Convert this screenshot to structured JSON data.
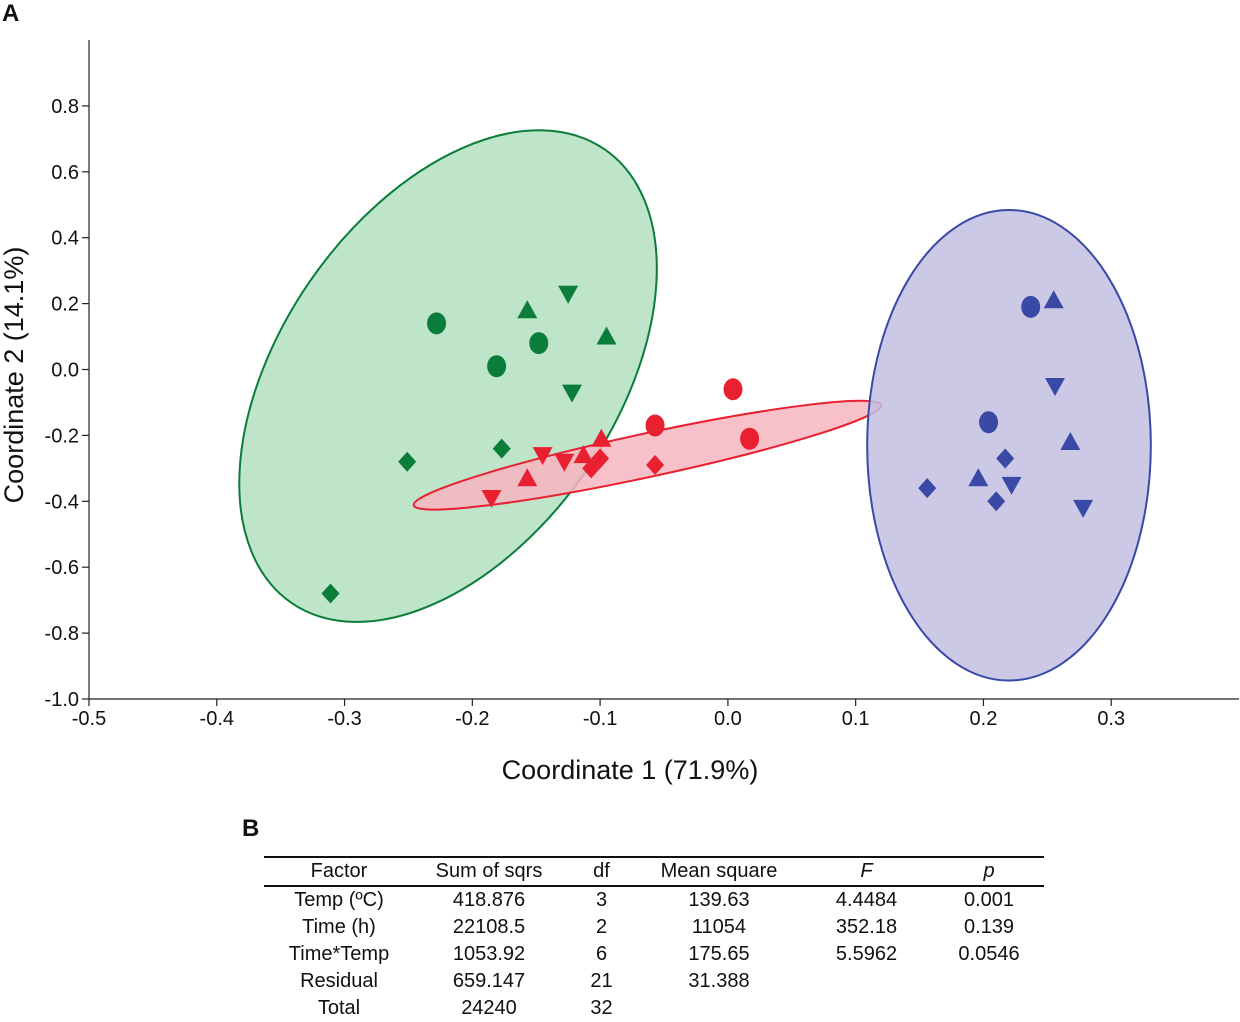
{
  "panel_labels": {
    "a": "A",
    "b": "B"
  },
  "chart_data": {
    "type": "scatter",
    "title": "",
    "xlabel": "Coordinate 1 (71.9%)",
    "ylabel": "Coordinate 2 (14.1%)",
    "xlim": [
      -0.5,
      0.4
    ],
    "ylim": [
      -1.0,
      1.0
    ],
    "xticks": [
      -0.5,
      -0.4,
      -0.3,
      -0.2,
      -0.1,
      0.0,
      0.1,
      0.2,
      0.3
    ],
    "xtick_labels": [
      "-0.5",
      "-0.4",
      "-0.3",
      "-0.2",
      "-0.1",
      "0.0",
      "0.1",
      "0.2",
      "0.3"
    ],
    "yticks": [
      -1.0,
      -0.8,
      -0.6,
      -0.4,
      -0.2,
      0.0,
      0.2,
      0.4,
      0.6,
      0.8
    ],
    "ytick_labels": [
      "-1.0",
      "-0.8",
      "-0.6",
      "-0.4",
      "-0.2",
      "0.0",
      "0.2",
      "0.4",
      "0.6",
      "0.8"
    ],
    "grid": false,
    "groups": [
      {
        "name": "green",
        "color": "#0a7d3a",
        "fill": "#b3dfbf",
        "ellipse": {
          "cx": -0.219,
          "cy": -0.02,
          "rx": 0.355,
          "ry": 0.157,
          "angle_deg": 55.3
        },
        "points": [
          {
            "x": -0.228,
            "y": 0.14,
            "shape": "circle"
          },
          {
            "x": -0.181,
            "y": 0.01,
            "shape": "circle"
          },
          {
            "x": -0.148,
            "y": 0.08,
            "shape": "circle"
          },
          {
            "x": -0.157,
            "y": 0.18,
            "shape": "triangle-up"
          },
          {
            "x": -0.095,
            "y": 0.1,
            "shape": "triangle-up"
          },
          {
            "x": -0.125,
            "y": 0.23,
            "shape": "triangle-down"
          },
          {
            "x": -0.122,
            "y": -0.07,
            "shape": "triangle-down"
          },
          {
            "x": -0.251,
            "y": -0.28,
            "shape": "diamond"
          },
          {
            "x": -0.177,
            "y": -0.24,
            "shape": "diamond"
          },
          {
            "x": -0.311,
            "y": -0.68,
            "shape": "diamond"
          }
        ]
      },
      {
        "name": "red",
        "color": "#e82030",
        "fill": "#f7b5c0",
        "ellipse": {
          "cx": -0.063,
          "cy": -0.26,
          "rx": 0.191,
          "ry": 0.052,
          "angle_deg": 12.1
        },
        "points": [
          {
            "x": 0.004,
            "y": -0.06,
            "shape": "circle"
          },
          {
            "x": 0.017,
            "y": -0.21,
            "shape": "circle"
          },
          {
            "x": -0.057,
            "y": -0.17,
            "shape": "circle"
          },
          {
            "x": -0.157,
            "y": -0.33,
            "shape": "triangle-up"
          },
          {
            "x": -0.113,
            "y": -0.26,
            "shape": "triangle-up"
          },
          {
            "x": -0.099,
            "y": -0.21,
            "shape": "triangle-up"
          },
          {
            "x": -0.185,
            "y": -0.39,
            "shape": "triangle-down"
          },
          {
            "x": -0.145,
            "y": -0.26,
            "shape": "triangle-down"
          },
          {
            "x": -0.128,
            "y": -0.28,
            "shape": "triangle-down"
          },
          {
            "x": -0.107,
            "y": -0.3,
            "shape": "diamond"
          },
          {
            "x": -0.1,
            "y": -0.27,
            "shape": "diamond"
          },
          {
            "x": -0.057,
            "y": -0.29,
            "shape": "diamond"
          }
        ]
      },
      {
        "name": "blue",
        "color": "#3a49a6",
        "fill": "#c3bfe2",
        "ellipse": {
          "cx": 0.22,
          "cy": -0.23,
          "rx": 0.111,
          "ry": 0.714,
          "angle_deg": 0
        },
        "points": [
          {
            "x": 0.237,
            "y": 0.19,
            "shape": "circle"
          },
          {
            "x": 0.204,
            "y": -0.16,
            "shape": "circle"
          },
          {
            "x": 0.255,
            "y": 0.21,
            "shape": "triangle-up"
          },
          {
            "x": 0.268,
            "y": -0.22,
            "shape": "triangle-up"
          },
          {
            "x": 0.196,
            "y": -0.33,
            "shape": "triangle-up"
          },
          {
            "x": 0.256,
            "y": -0.05,
            "shape": "triangle-down"
          },
          {
            "x": 0.222,
            "y": -0.35,
            "shape": "triangle-down"
          },
          {
            "x": 0.278,
            "y": -0.42,
            "shape": "triangle-down"
          },
          {
            "x": 0.156,
            "y": -0.36,
            "shape": "diamond"
          },
          {
            "x": 0.217,
            "y": -0.27,
            "shape": "diamond"
          },
          {
            "x": 0.21,
            "y": -0.4,
            "shape": "diamond"
          }
        ]
      }
    ]
  },
  "table": {
    "headers": [
      "Factor",
      "Sum of sqrs",
      "df",
      "Mean square",
      "F",
      "p"
    ],
    "rows": [
      [
        "Temp (ºC)",
        "418.876",
        "3",
        "139.63",
        "4.4484",
        "0.001"
      ],
      [
        "Time (h)",
        "22108.5",
        "2",
        "11054",
        "352.18",
        "0.139"
      ],
      [
        "Time*Temp",
        "1053.92",
        "6",
        "175.65",
        "5.5962",
        "0.0546"
      ],
      [
        "Residual",
        "659.147",
        "21",
        "31.388",
        "",
        ""
      ],
      [
        "Total",
        "24240",
        "32",
        "",
        "",
        ""
      ]
    ]
  }
}
